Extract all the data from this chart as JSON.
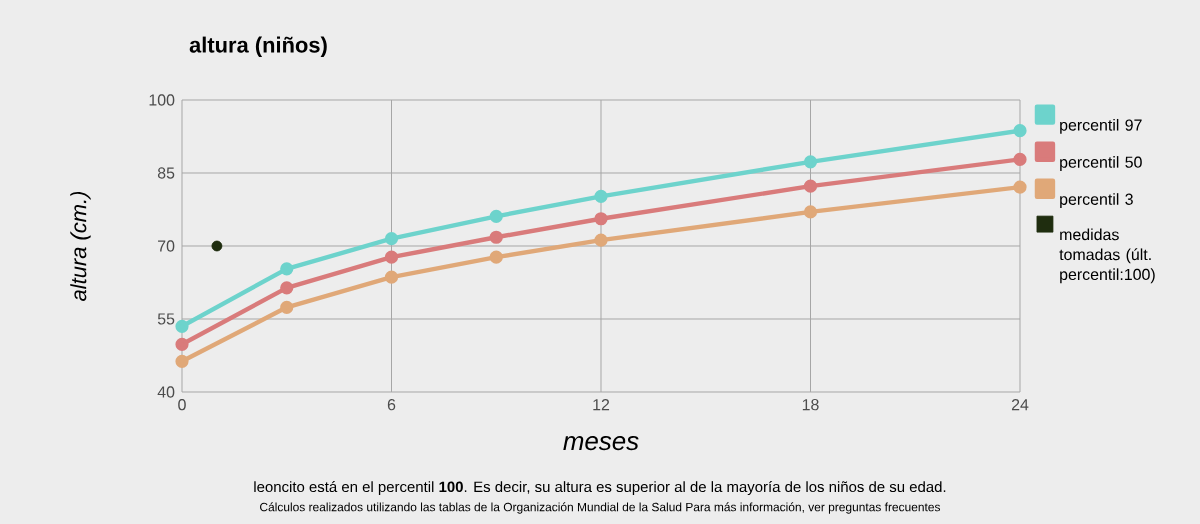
{
  "chart_data": {
    "type": "line",
    "title": "altura (niños)",
    "xlabel": "meses",
    "ylabel": "altura (cm.)",
    "x": [
      0,
      3,
      6,
      9,
      12,
      18,
      24
    ],
    "series": [
      {
        "name": "percentil 97",
        "color": "#6dd3cc",
        "values": [
          53.5,
          65.3,
          71.5,
          76.1,
          80.2,
          87.3,
          93.7
        ]
      },
      {
        "name": "percentil 50",
        "color": "#d97b7b",
        "values": [
          49.8,
          61.4,
          67.7,
          71.8,
          75.6,
          82.3,
          87.8
        ]
      },
      {
        "name": "percentil 3",
        "color": "#e0a878",
        "values": [
          46.3,
          57.4,
          63.6,
          67.7,
          71.2,
          77.0,
          82.1
        ]
      },
      {
        "name": "medidas tomadas (últ. percentil:100)",
        "type": "scatter",
        "color": "#1f2d0f",
        "x": [
          1
        ],
        "values": [
          70
        ]
      }
    ],
    "xlim": [
      0,
      24
    ],
    "ylim": [
      40,
      100
    ],
    "xticks": [
      0,
      6,
      12,
      18,
      24
    ],
    "yticks": [
      40,
      55,
      70,
      85,
      100
    ],
    "grid": true,
    "legend": "right",
    "marker": "circle",
    "annotations": [
      "leoncito está en el percentil **100**. Es decir, su altura es superior al de la mayoría de los niños de su edad.",
      "Cálculos realizados utilizando las tablas de la Organización Mundial de la Salud Para más información, ver preguntas frecuentes"
    ]
  }
}
